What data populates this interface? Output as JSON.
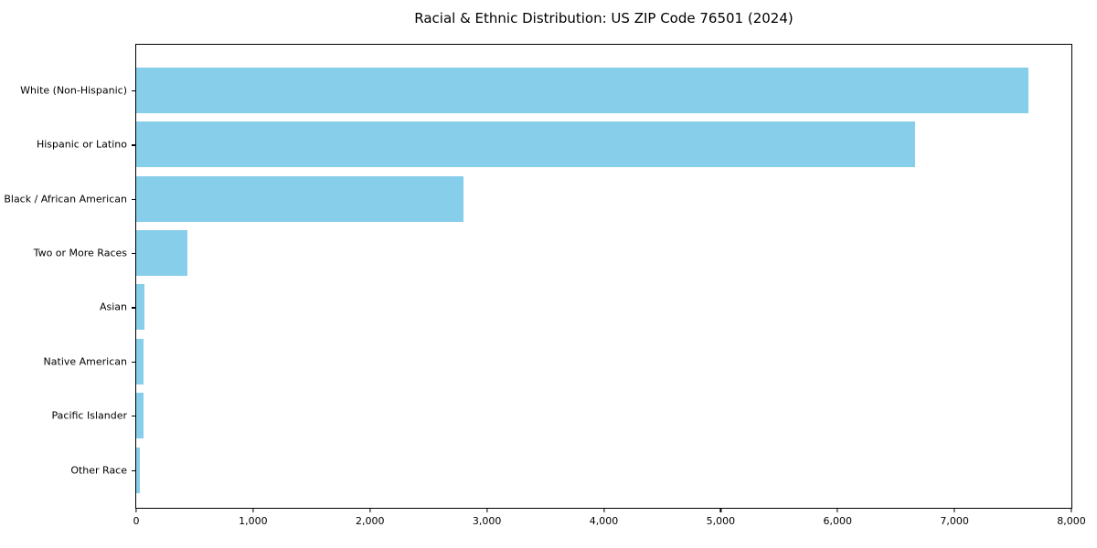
{
  "title": "Racial & Ethnic Distribution: US ZIP Code 76501 (2024)",
  "chart_data": {
    "type": "bar",
    "orientation": "horizontal",
    "title": "Racial & Ethnic Distribution: US ZIP Code 76501 (2024)",
    "categories": [
      "White (Non-Hispanic)",
      "Hispanic or Latino",
      "Black / African American",
      "Two or More Races",
      "Asian",
      "Native American",
      "Pacific Islander",
      "Other Race"
    ],
    "values": [
      7630,
      6665,
      2800,
      435,
      70,
      65,
      60,
      30
    ],
    "xlabel": "",
    "ylabel": "",
    "xlim": [
      0,
      8000
    ],
    "xticks": [
      0,
      1000,
      2000,
      3000,
      4000,
      5000,
      6000,
      7000,
      8000
    ],
    "xtick_labels": [
      "0",
      "1,000",
      "2,000",
      "3,000",
      "4,000",
      "5,000",
      "6,000",
      "7,000",
      "8,000"
    ],
    "bar_color": "#87CEEB",
    "grid": false,
    "legend": null
  }
}
